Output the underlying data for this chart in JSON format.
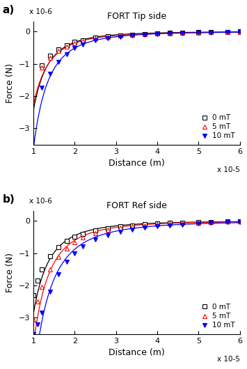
{
  "title_a": "FORT Tip side",
  "title_b": "FORT Ref side",
  "label_a": "a)",
  "label_b": "b)",
  "xlabel": "Distance (m)",
  "ylabel": "Force (N)",
  "xscale_label": "x 10-5",
  "yscale_label": "x 10-6",
  "xlim": [
    1,
    6
  ],
  "ylim": [
    -3.5,
    0.3
  ],
  "yticks": [
    -3,
    -2,
    -1,
    0
  ],
  "xticks": [
    1,
    2,
    3,
    4,
    5,
    6
  ],
  "legend_labels": [
    "0 mT",
    "5 mT",
    "10 mT"
  ],
  "colors": [
    "black",
    "red",
    "blue"
  ],
  "tip_x_data": [
    1.2,
    1.4,
    1.6,
    1.8,
    2.0,
    2.2,
    2.5,
    2.8,
    3.1,
    3.4,
    3.7,
    4.0,
    4.3,
    4.6,
    5.0,
    5.3,
    5.7,
    6.0
  ],
  "tip_0mT": [
    -1.05,
    -0.75,
    -0.55,
    -0.43,
    -0.33,
    -0.27,
    -0.2,
    -0.155,
    -0.12,
    -0.095,
    -0.075,
    -0.06,
    -0.05,
    -0.038,
    -0.028,
    -0.02,
    -0.012,
    -0.005
  ],
  "tip_5mT": [
    -1.12,
    -0.82,
    -0.6,
    -0.47,
    -0.37,
    -0.3,
    -0.22,
    -0.17,
    -0.135,
    -0.108,
    -0.085,
    -0.07,
    -0.057,
    -0.045,
    -0.034,
    -0.027,
    -0.018,
    -0.012
  ],
  "tip_10mT": [
    -1.75,
    -1.3,
    -0.95,
    -0.7,
    -0.52,
    -0.4,
    -0.28,
    -0.21,
    -0.16,
    -0.13,
    -0.105,
    -0.085,
    -0.068,
    -0.055,
    -0.042,
    -0.033,
    -0.022,
    -0.015
  ],
  "ref_x_data": [
    1.0,
    1.1,
    1.2,
    1.4,
    1.6,
    1.8,
    2.0,
    2.2,
    2.5,
    2.8,
    3.1,
    3.4,
    3.7,
    4.0,
    4.3,
    4.6,
    5.0,
    5.3,
    5.7,
    6.0
  ],
  "ref_0mT": [
    -2.3,
    -1.85,
    -1.5,
    -1.1,
    -0.82,
    -0.63,
    -0.5,
    -0.4,
    -0.295,
    -0.225,
    -0.175,
    -0.14,
    -0.112,
    -0.09,
    -0.073,
    -0.058,
    -0.043,
    -0.033,
    -0.02,
    -0.012
  ],
  "ref_5mT": [
    -3.05,
    -2.5,
    -2.05,
    -1.5,
    -1.12,
    -0.85,
    -0.66,
    -0.52,
    -0.375,
    -0.285,
    -0.22,
    -0.172,
    -0.138,
    -0.11,
    -0.09,
    -0.072,
    -0.054,
    -0.042,
    -0.027,
    -0.018
  ],
  "ref_10mT": [
    -3.5,
    -3.2,
    -2.85,
    -2.2,
    -1.65,
    -1.27,
    -1.0,
    -0.8,
    -0.58,
    -0.44,
    -0.34,
    -0.27,
    -0.215,
    -0.175,
    -0.143,
    -0.117,
    -0.09,
    -0.072,
    -0.05,
    -0.037
  ]
}
